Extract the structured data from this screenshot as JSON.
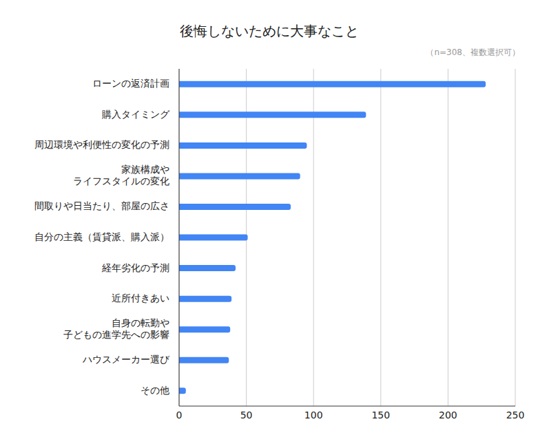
{
  "chart_data": {
    "type": "bar",
    "title": "後悔しないために大事なこと",
    "subtitle": "（n=308、複数選択可）",
    "orientation": "horizontal",
    "categories": [
      "ローンの返済計画",
      "購入タイミング",
      "周辺環境や利便性の変化の予測",
      "家族構成や\nライフスタイルの変化",
      "間取りや日当たり、部屋の広さ",
      "自分の主義（賃貸派、購入派）",
      "経年劣化の予測",
      "近所付きあい",
      "自身の転勤や\n子どもの進学先への影響",
      "ハウスメーカー選び",
      "その他"
    ],
    "values": [
      228,
      139,
      95,
      90,
      83,
      51,
      42,
      39,
      38,
      37,
      5
    ],
    "color": "#4285f4",
    "xlim": [
      0,
      250
    ],
    "xticks": [
      0,
      50,
      100,
      150,
      200,
      250
    ],
    "grid": true
  }
}
